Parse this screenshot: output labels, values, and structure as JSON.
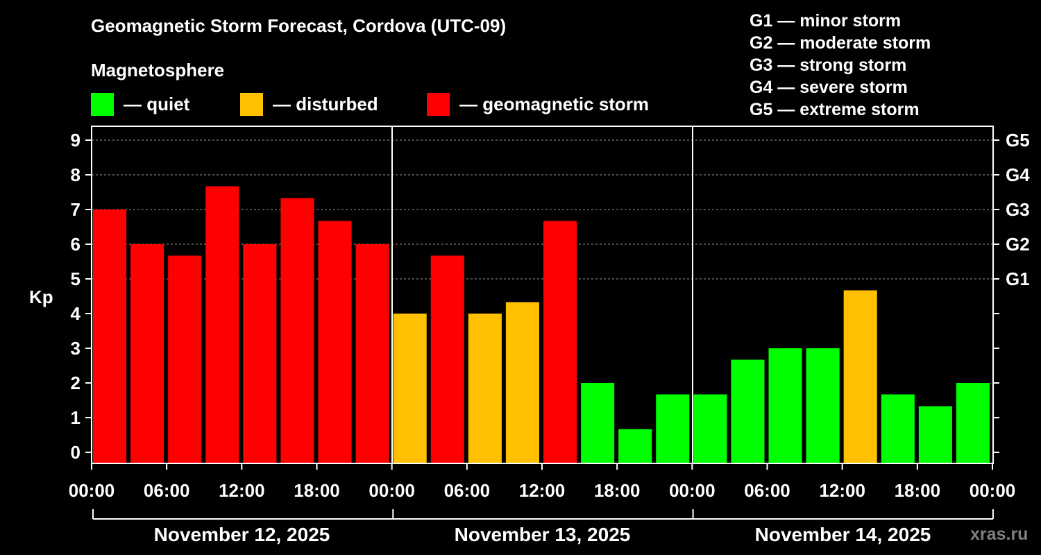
{
  "chart_data": {
    "type": "bar",
    "title": "Geomagnetic Storm Forecast, Cordova (UTC-09)",
    "subtitle": "Magnetosphere",
    "ylabel": "Kp",
    "ylim": [
      0,
      9
    ],
    "yticks": [
      "0",
      "1",
      "2",
      "3",
      "4",
      "5",
      "6",
      "7",
      "8",
      "9"
    ],
    "right_ticks": [
      {
        "value": 5,
        "label": "G1"
      },
      {
        "value": 6,
        "label": "G2"
      },
      {
        "value": 7,
        "label": "G3"
      },
      {
        "value": 8,
        "label": "G4"
      },
      {
        "value": 9,
        "label": "G5"
      }
    ],
    "grid": "horizontal dashed at Kp 5-9",
    "xticks": [
      "00:00",
      "06:00",
      "12:00",
      "18:00",
      "00:00",
      "06:00",
      "12:00",
      "18:00",
      "00:00",
      "06:00",
      "12:00",
      "18:00",
      "00:00"
    ],
    "days": [
      "November 12, 2025",
      "November 13, 2025",
      "November 14, 2025"
    ],
    "values": [
      7.0,
      6.0,
      5.67,
      7.67,
      6.0,
      7.33,
      6.67,
      6.0,
      4.0,
      5.67,
      4.0,
      4.33,
      6.67,
      2.0,
      0.67,
      1.67,
      1.67,
      2.67,
      3.0,
      3.0,
      4.67,
      1.67,
      1.33,
      2.0
    ],
    "levels": [
      "storm",
      "storm",
      "storm",
      "storm",
      "storm",
      "storm",
      "storm",
      "storm",
      "disturbed",
      "storm",
      "disturbed",
      "disturbed",
      "storm",
      "quiet",
      "quiet",
      "quiet",
      "quiet",
      "quiet",
      "quiet",
      "quiet",
      "disturbed",
      "quiet",
      "quiet",
      "quiet"
    ],
    "legend": [
      {
        "key": "quiet",
        "label": "— quiet",
        "color": "#00ff00"
      },
      {
        "key": "disturbed",
        "label": "— disturbed",
        "color": "#ffc000"
      },
      {
        "key": "storm",
        "label": "— geomagnetic storm",
        "color": "#ff0000"
      }
    ],
    "storm_scale": [
      "G1 — minor storm",
      "G2 — moderate storm",
      "G3 — strong storm",
      "G4 — severe storm",
      "G5 — extreme storm"
    ]
  },
  "watermark": "xras.ru"
}
